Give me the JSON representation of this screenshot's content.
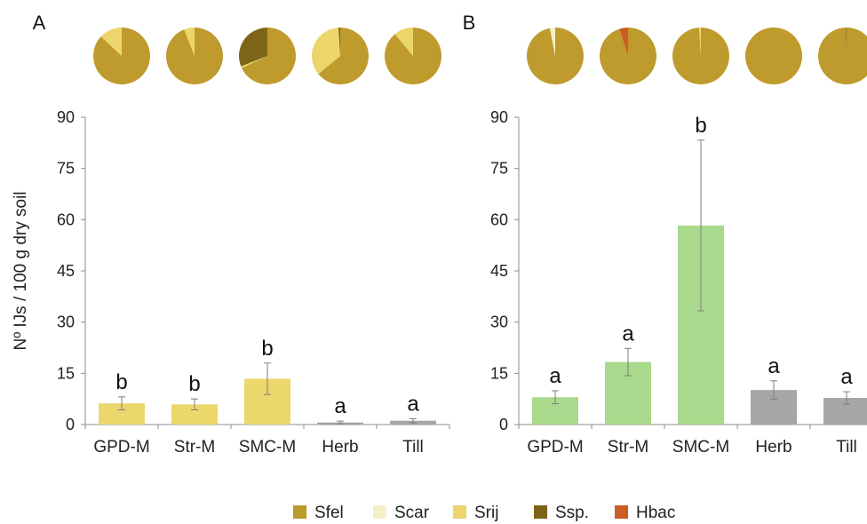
{
  "colors": {
    "Sfel": "#bf9a2c",
    "Scar": "#f6efc9",
    "Srij": "#ecd66c",
    "Ssp.": "#7d6419",
    "Hbac": "#c95f24",
    "bar_mulch_A": "#ecd76c",
    "bar_mulch_B": "#a9d98c",
    "bar_control": "#a6a6a6",
    "axis": "#8c8c8c",
    "errorbar": "#7f7f7f"
  },
  "legend": [
    "Sfel",
    "Scar",
    "Srij",
    "Ssp.",
    "Hbac"
  ],
  "chart_data": [
    {
      "type": "bar",
      "panel": "A",
      "categories": [
        "GPD-M",
        "Str-M",
        "SMC-M",
        "Herb",
        "Till"
      ],
      "values": [
        6.2,
        5.9,
        13.4,
        0.6,
        1.1
      ],
      "errors": [
        1.9,
        1.6,
        4.6,
        0.4,
        0.6
      ],
      "significance": [
        "b",
        "b",
        "b",
        "a",
        "a"
      ],
      "bar_colors": [
        "#ecd76c",
        "#ecd76c",
        "#ecd76c",
        "#a6a6a6",
        "#a6a6a6"
      ],
      "ylabel": "Nº IJs / 100 g dry soil",
      "ylim": [
        0,
        90
      ],
      "yticks": [
        0,
        15,
        30,
        45,
        60,
        75,
        90
      ],
      "pies": [
        {
          "Sfel": 87,
          "Scar": 0,
          "Srij": 13,
          "Ssp.": 0,
          "Hbac": 0
        },
        {
          "Sfel": 94,
          "Scar": 0,
          "Srij": 6,
          "Ssp.": 0,
          "Hbac": 0
        },
        {
          "Sfel": 68,
          "Scar": 0,
          "Srij": 1,
          "Ssp.": 31,
          "Hbac": 0
        },
        {
          "Sfel": 64,
          "Scar": 0,
          "Srij": 35,
          "Ssp.": 1,
          "Hbac": 0
        },
        {
          "Sfel": 89,
          "Scar": 0,
          "Srij": 11,
          "Ssp.": 0,
          "Hbac": 0
        }
      ]
    },
    {
      "type": "bar",
      "panel": "B",
      "categories": [
        "GPD-M",
        "Str-M",
        "SMC-M",
        "Herb",
        "Till"
      ],
      "values": [
        8.0,
        18.3,
        58.3,
        10.1,
        7.8
      ],
      "errors": [
        1.9,
        4.0,
        25.0,
        2.7,
        1.8
      ],
      "significance": [
        "a",
        "a",
        "b",
        "a",
        "a"
      ],
      "bar_colors": [
        "#a9d98c",
        "#a9d98c",
        "#a9d98c",
        "#a6a6a6",
        "#a6a6a6"
      ],
      "ylim": [
        0,
        90
      ],
      "yticks": [
        0,
        15,
        30,
        45,
        60,
        75,
        90
      ],
      "pies": [
        {
          "Sfel": 97,
          "Scar": 3,
          "Srij": 0,
          "Ssp.": 0,
          "Hbac": 0
        },
        {
          "Sfel": 95,
          "Scar": 0,
          "Srij": 0,
          "Ssp.": 0,
          "Hbac": 5
        },
        {
          "Sfel": 99,
          "Scar": 0,
          "Srij": 1,
          "Ssp.": 0,
          "Hbac": 0
        },
        {
          "Sfel": 100,
          "Scar": 0,
          "Srij": 0,
          "Ssp.": 0,
          "Hbac": 0
        },
        {
          "Sfel": 99.6,
          "Scar": 0,
          "Srij": 0,
          "Ssp.": 0.4,
          "Hbac": 0
        }
      ]
    }
  ]
}
